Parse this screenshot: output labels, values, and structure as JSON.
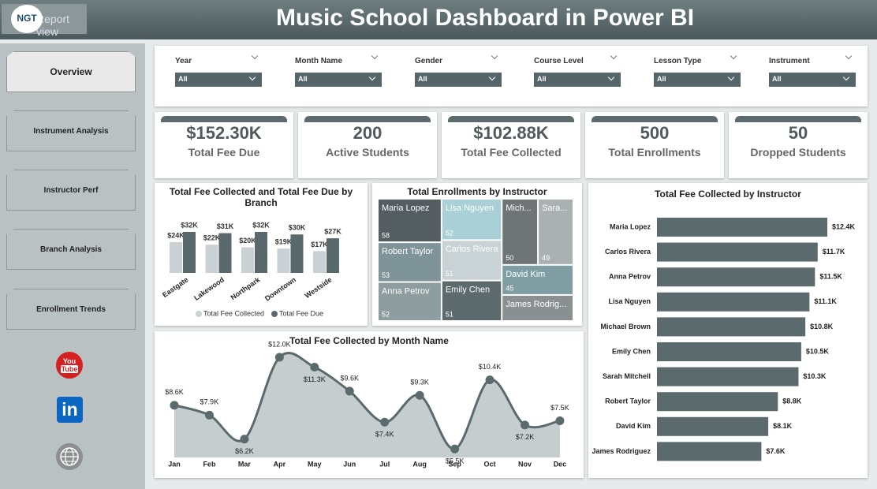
{
  "header": {
    "title": "Music School Dashboard in Power BI",
    "logo": "NGT",
    "back_button": "Report view"
  },
  "nav": [
    "Overview",
    "Instrument Analysis",
    "Instructor Perf",
    "Branch Analysis",
    "Enrollment Trends"
  ],
  "social": {
    "youtube": [
      "You",
      "Tube"
    ],
    "linkedin": "in"
  },
  "filters": [
    {
      "label": "Year",
      "value": "All"
    },
    {
      "label": "Month Name",
      "value": "All"
    },
    {
      "label": "Gender",
      "value": "All"
    },
    {
      "label": "Course Level",
      "value": "All"
    },
    {
      "label": "Lesson Type",
      "value": "All"
    },
    {
      "label": "Instrument",
      "value": "All"
    }
  ],
  "kpis": [
    {
      "value": "$152.30K",
      "label": "Total Fee Due"
    },
    {
      "value": "200",
      "label": "Active Students"
    },
    {
      "value": "$102.88K",
      "label": "Total Fee Collected"
    },
    {
      "value": "500",
      "label": "Total Enrollments"
    },
    {
      "value": "50",
      "label": "Dropped Students"
    }
  ],
  "chart_data": [
    {
      "type": "bar",
      "title": "Total Fee Collected and Total Fee Due by Branch",
      "categories": [
        "Eastgate",
        "Lakewood",
        "Northpark",
        "Downtown",
        "Westside"
      ],
      "series": [
        {
          "name": "Total Fee Collected",
          "color": "#c9d1d4",
          "values": [
            24,
            22,
            20,
            19,
            17
          ],
          "value_labels": [
            "$24K",
            "$22K",
            "$20K",
            "$19K",
            "$17K"
          ]
        },
        {
          "name": "Total Fee Due",
          "color": "#58686b",
          "values": [
            32,
            31,
            32,
            30,
            27
          ],
          "value_labels": [
            "$32K",
            "$31K",
            "$32K",
            "$30K",
            "$27K"
          ]
        }
      ],
      "legend": "bottom"
    },
    {
      "type": "treemap",
      "title": "Total Enrollments by Instructor",
      "categories": [
        "Maria Lopez",
        "Robert Taylor",
        "Lisa Nguyen",
        "Anna Petrov",
        "Carlos Rivera",
        "Emily Chen",
        "Mich...",
        "Sara...",
        "David Kim",
        "James Rodrig..."
      ],
      "values": [
        58,
        53,
        52,
        52,
        51,
        51,
        50,
        49,
        45,
        39
      ],
      "colors": [
        "#545e62",
        "#7e9498",
        "#a9d0d7",
        "#8e9d9f",
        "#c9d3d5",
        "#5d6a6d",
        "#6f7577",
        "#abb1b3",
        "#7f9ea3",
        "#8a9092"
      ]
    },
    {
      "type": "area",
      "title": "Total Fee Collected by Month Name",
      "categories": [
        "Jan",
        "Feb",
        "Mar",
        "Apr",
        "May",
        "Jun",
        "Jul",
        "Aug",
        "Sep",
        "Oct",
        "Nov",
        "Dec"
      ],
      "values": [
        8.6,
        7.9,
        6.2,
        12.0,
        11.3,
        9.6,
        7.4,
        9.3,
        5.5,
        10.4,
        7.2,
        7.5
      ],
      "value_labels": [
        "$8.6K",
        "$7.9K",
        "$6.2K",
        "$12.0K",
        "$11.3K",
        "$9.6K",
        "$7.4K",
        "$9.3K",
        "$5.5K",
        "$10.4K",
        "$7.2K",
        "$7.5K"
      ],
      "color": "#5a6a6d",
      "fill": "#c6cdce"
    },
    {
      "type": "hbar",
      "title": "Total Fee Collected by Instructor",
      "categories": [
        "Maria Lopez",
        "Carlos Rivera",
        "Anna Petrov",
        "Lisa Nguyen",
        "Michael Brown",
        "Emily Chen",
        "Sarah Mitchell",
        "Robert Taylor",
        "David Kim",
        "James Rodriguez"
      ],
      "values": [
        12.4,
        11.7,
        11.5,
        11.1,
        10.8,
        10.5,
        10.3,
        8.8,
        8.1,
        7.6
      ],
      "value_labels": [
        "$12.4K",
        "$11.7K",
        "$11.5K",
        "$11.1K",
        "$10.8K",
        "$10.5K",
        "$10.3K",
        "$8.8K",
        "$8.1K",
        "$7.6K"
      ],
      "color": "#5a6a6d"
    }
  ]
}
